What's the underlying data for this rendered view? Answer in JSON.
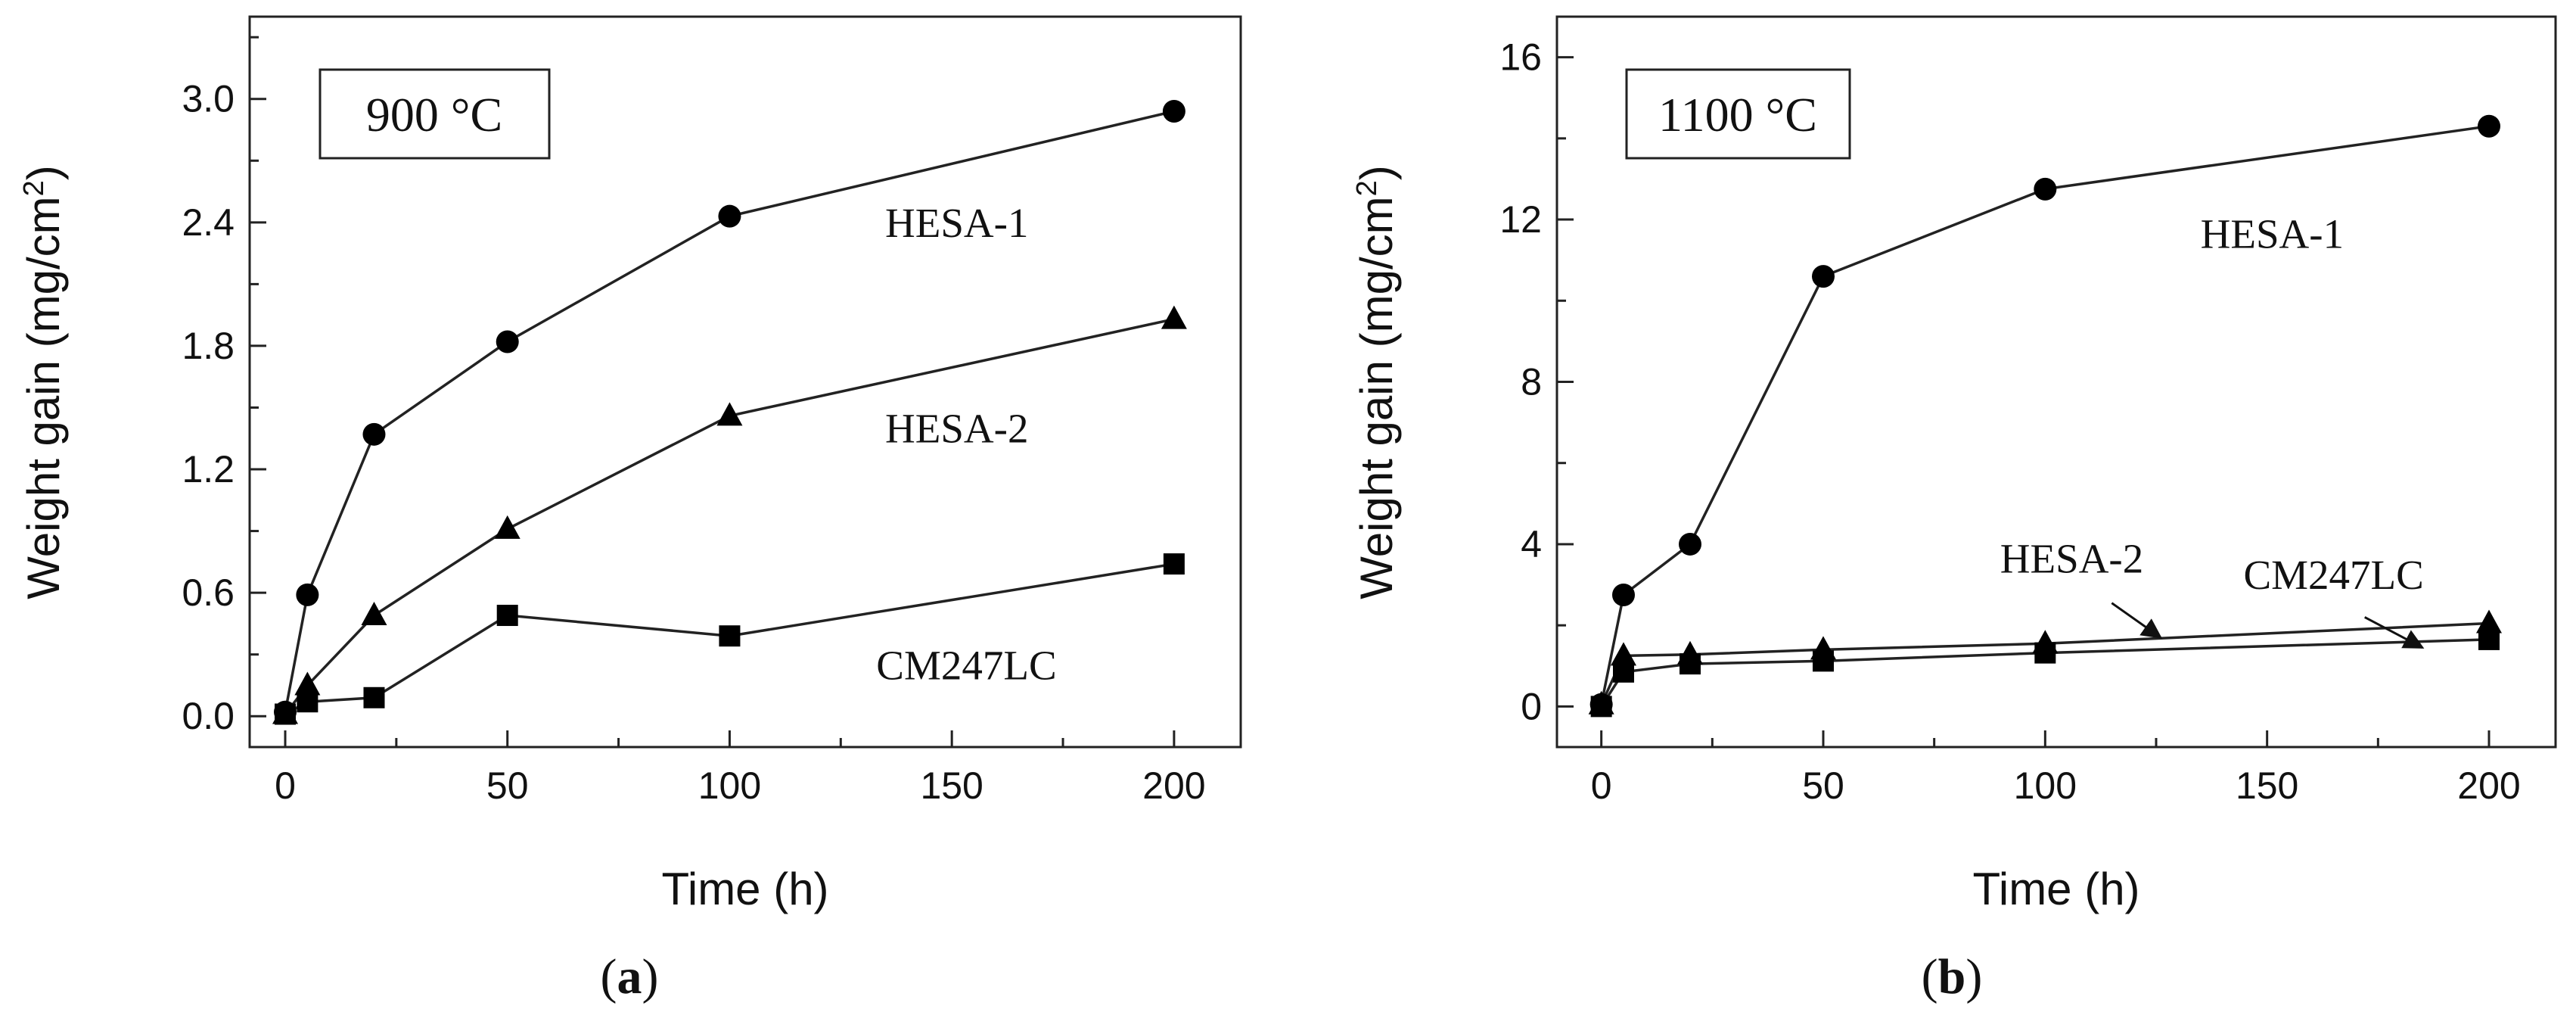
{
  "chart_data": [
    {
      "type": "line",
      "panel_label": "(a)",
      "panel_letter": "a",
      "temperature_label": "900 °C",
      "xlabel": "Time (h)",
      "ylabel": "Weight gain (mg/cm²)",
      "ylabel_parts": {
        "base": "Weight gain (mg/cm",
        "sup": "2",
        "end": ")"
      },
      "xlim": [
        -8,
        215
      ],
      "ylim": [
        -0.15,
        3.4
      ],
      "xticks": [
        0,
        50,
        100,
        150,
        200
      ],
      "yticks": [
        0.0,
        0.6,
        1.2,
        1.8,
        2.4,
        3.0
      ],
      "ytick_labels": [
        "0.0",
        "0.6",
        "1.2",
        "1.8",
        "2.4",
        "3.0"
      ],
      "grid": false,
      "series": [
        {
          "name": "HESA-1",
          "marker": "circle",
          "label_at": [
            135,
            2.33
          ],
          "label_anchor": "start",
          "x": [
            0,
            5,
            20,
            50,
            100,
            200
          ],
          "y": [
            0.02,
            0.59,
            1.37,
            1.82,
            2.43,
            2.94
          ]
        },
        {
          "name": "HESA-2",
          "marker": "triangle",
          "label_at": [
            135,
            1.33
          ],
          "label_anchor": "start",
          "x": [
            0,
            5,
            20,
            50,
            100,
            200
          ],
          "y": [
            0.01,
            0.15,
            0.49,
            0.91,
            1.46,
            1.93
          ]
        },
        {
          "name": "CM247LC",
          "marker": "square",
          "label_at": [
            133,
            0.18
          ],
          "label_anchor": "start",
          "x": [
            0,
            5,
            20,
            50,
            100,
            200
          ],
          "y": [
            0.01,
            0.07,
            0.09,
            0.49,
            0.39,
            0.74
          ]
        }
      ]
    },
    {
      "type": "line",
      "panel_label": "(b)",
      "panel_letter": "b",
      "temperature_label": "1100 °C",
      "xlabel": "Time (h)",
      "ylabel": "Weight gain (mg/cm²)",
      "ylabel_parts": {
        "base": "Weight gain (mg/cm",
        "sup": "2",
        "end": ")"
      },
      "xlim": [
        -10,
        215
      ],
      "ylim": [
        -1,
        17
      ],
      "xticks": [
        0,
        50,
        100,
        150,
        200
      ],
      "yticks": [
        0,
        4,
        8,
        12,
        16
      ],
      "ytick_labels": [
        "0",
        "4",
        "8",
        "12",
        "16"
      ],
      "grid": false,
      "series": [
        {
          "name": "HESA-1",
          "marker": "circle",
          "label_at": [
            135,
            11.3
          ],
          "label_anchor": "start",
          "x": [
            0,
            5,
            20,
            50,
            100,
            200
          ],
          "y": [
            0.05,
            2.75,
            4.0,
            10.6,
            12.75,
            14.3
          ]
        },
        {
          "name": "HESA-2",
          "marker": "triangle",
          "label_at": [
            106,
            3.3
          ],
          "label_anchor": "middle",
          "arrow_from": [
            115,
            2.55
          ],
          "arrow_to": [
            126,
            1.7
          ],
          "x": [
            0,
            5,
            20,
            50,
            100,
            200
          ],
          "y": [
            0.05,
            1.25,
            1.28,
            1.4,
            1.55,
            2.05
          ]
        },
        {
          "name": "CM247LC",
          "marker": "square",
          "label_at": [
            165,
            2.9
          ],
          "label_anchor": "middle",
          "arrow_from": [
            172,
            2.2
          ],
          "arrow_to": [
            185,
            1.45
          ],
          "x": [
            0,
            5,
            20,
            50,
            100,
            200
          ],
          "y": [
            0.0,
            0.85,
            1.05,
            1.12,
            1.32,
            1.65
          ]
        }
      ]
    }
  ]
}
